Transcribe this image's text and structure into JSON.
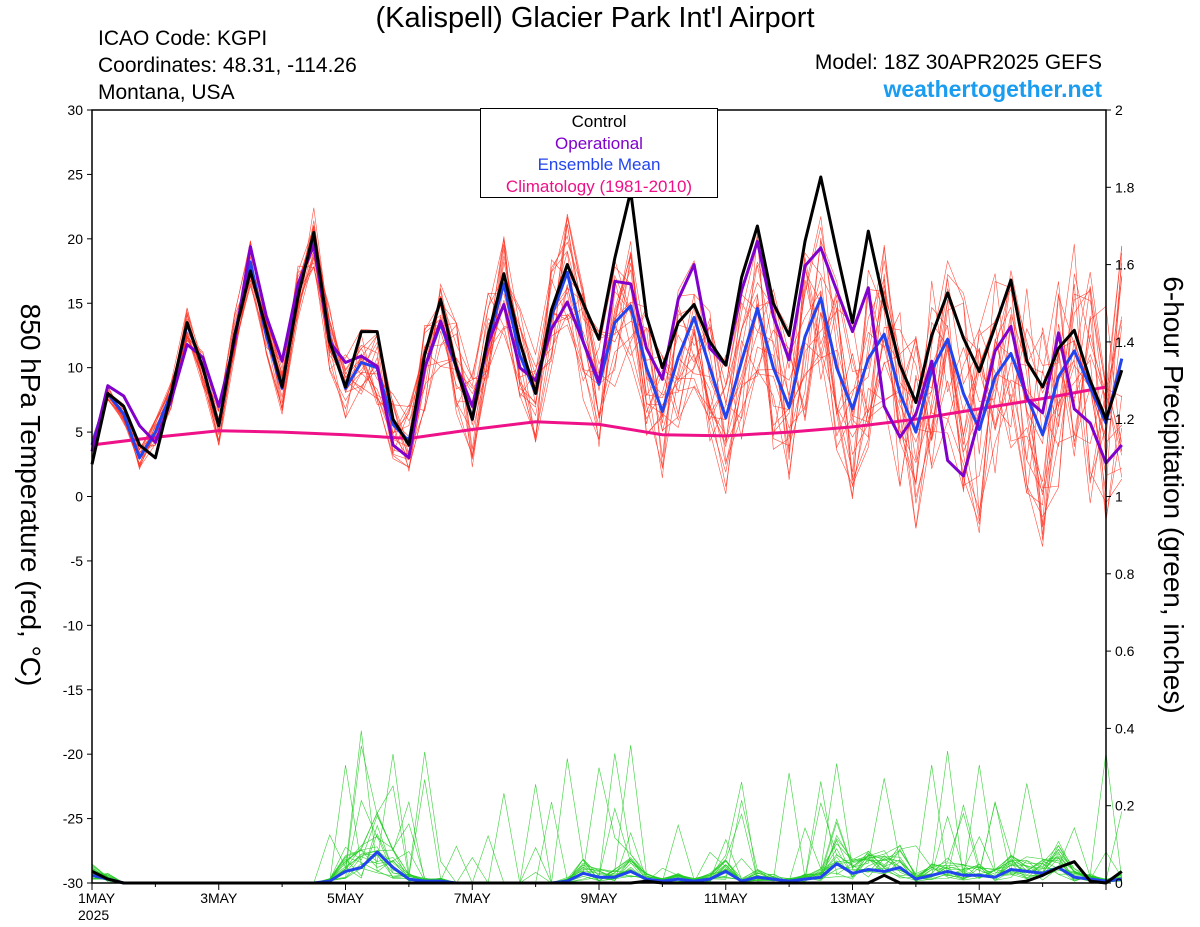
{
  "header": {
    "title": "(Kalispell) Glacier Park Int'l Airport",
    "icao": "ICAO Code: KGPI",
    "coordinates": "Coordinates: 48.31, -114.26",
    "location": "Montana, USA",
    "model": "Model: 18Z 30APR2025 GEFS",
    "website": "weathertogether.net"
  },
  "colors": {
    "control": "#000000",
    "operational": "#8000cc",
    "ensemble_mean": "#2244ee",
    "climatology": "#ee1188",
    "members_temp": "#ff3322",
    "members_precip": "#22cc22",
    "website": "#1a9cf0"
  },
  "legend": {
    "items": [
      {
        "label": "Control",
        "color": "#000000"
      },
      {
        "label": "Operational",
        "color": "#8000cc"
      },
      {
        "label": "Ensemble Mean",
        "color": "#2244ee"
      },
      {
        "label": "Climatology (1981-2010)",
        "color": "#ee1188"
      }
    ]
  },
  "chart_data": {
    "type": "line",
    "ylabel_left": "850 hPa Temperature (red, °C)",
    "ylabel_right": "6-hour Precipitation (green, inches)",
    "ylim_left": [
      -30,
      30
    ],
    "ylim_right": [
      0,
      2
    ],
    "yticks_left": [
      30,
      25,
      20,
      15,
      10,
      5,
      0,
      -5,
      -10,
      -15,
      -20,
      -25,
      -30
    ],
    "yticks_right": [
      "2",
      "1.8",
      "1.6",
      "1.4",
      "1.2",
      "1",
      "0.8",
      "0.6",
      "0.4",
      "0.2",
      "0"
    ],
    "xtick_labels": [
      "1MAY",
      "3MAY",
      "5MAY",
      "7MAY",
      "9MAY",
      "11MAY",
      "13MAY",
      "15MAY"
    ],
    "xtick_sublabel": "2025",
    "x_days_range": [
      0,
      16
    ],
    "grid": false,
    "temp_series": {
      "control": [
        2.5,
        8,
        7,
        4,
        3,
        8,
        13.5,
        10,
        5.5,
        12.5,
        17.5,
        13,
        8.5,
        15.5,
        20.5,
        12,
        8.5,
        12.8,
        12.8,
        6,
        4,
        11,
        15.3,
        10,
        6,
        12.5,
        17.3,
        12,
        8,
        14.5,
        18,
        15,
        12.2,
        18.5,
        23.7,
        14,
        10,
        13.5,
        14.9,
        12,
        10.2,
        17,
        21,
        15,
        12.5,
        19.8,
        24.8,
        19,
        13.5,
        20.6,
        15,
        10.2,
        7.3,
        12.5,
        15.8,
        12.3,
        9.7,
        13.2,
        16.8,
        10.5,
        8.5,
        11.5,
        12.9,
        9,
        6,
        9.8
      ],
      "operational": [
        3.5,
        8.6,
        7.8,
        5.5,
        4.2,
        7.5,
        11.8,
        10.8,
        7,
        12,
        19.4,
        14,
        10.5,
        16.5,
        19.5,
        12,
        10.4,
        10.9,
        10.1,
        4,
        3,
        10,
        13.6,
        10.1,
        7,
        11.9,
        14.9,
        10,
        9,
        13,
        15.1,
        12,
        8.9,
        16.7,
        16.5,
        11.5,
        9.1,
        15.3,
        18,
        11.5,
        10.2,
        16,
        19.8,
        14,
        10.6,
        17.9,
        19.3,
        16,
        12.8,
        16.2,
        7,
        4.6,
        6.4,
        10.5,
        2.8,
        1.6,
        6.1,
        11.3,
        13.2,
        7.6,
        6.5,
        12.7,
        6.8,
        5.7,
        2.6,
        4
      ],
      "ensemble_mean": [
        4,
        8,
        6.4,
        3,
        5,
        8,
        13.4,
        10,
        5.5,
        12.5,
        18.2,
        12.5,
        8.4,
        16,
        20.1,
        12.3,
        8.4,
        10.4,
        10,
        5.6,
        4.3,
        10,
        13.4,
        10,
        6,
        12.2,
        16.5,
        11,
        8,
        14,
        17.4,
        12,
        8.7,
        13.5,
        14.8,
        10,
        6.6,
        10.8,
        13.9,
        10,
        6.1,
        10.5,
        14.6,
        10,
        6.9,
        12.4,
        15.4,
        10,
        6.8,
        10.7,
        12.6,
        8,
        5,
        9.8,
        12.2,
        8,
        5.2,
        9.3,
        11.1,
        7.8,
        4.8,
        9.3,
        11.3,
        8.5,
        5.7,
        10.7
      ],
      "climatology_x_days": [
        0,
        1,
        2,
        3,
        4,
        5,
        6,
        7,
        8,
        9,
        10,
        11,
        12,
        13,
        14,
        15,
        16
      ],
      "climatology": [
        4,
        4.6,
        5.1,
        5.0,
        4.8,
        4.5,
        5.2,
        5.8,
        5.6,
        4.8,
        4.7,
        5.0,
        5.4,
        6.0,
        6.8,
        7.6,
        8.5
      ]
    },
    "precip_series": {
      "control": [
        0.03,
        0.01,
        0,
        0,
        0,
        0,
        0,
        0,
        0,
        0,
        0,
        0,
        0,
        0,
        0,
        0,
        0,
        0,
        0,
        0,
        0,
        0,
        0,
        0,
        0,
        0,
        0,
        0,
        0,
        0,
        0,
        0,
        0,
        0,
        0,
        0.005,
        0,
        0,
        0,
        0,
        0,
        0,
        0,
        0,
        0,
        0,
        0,
        0,
        0,
        0,
        0.02,
        0,
        0,
        0,
        0,
        0,
        0,
        0,
        0,
        0.005,
        0.02,
        0.04,
        0.055,
        0.005,
        0,
        0.03
      ],
      "ensemble_mean": [
        0.02,
        0.01,
        0,
        0,
        0,
        0,
        0,
        0,
        0,
        0,
        0,
        0,
        0,
        0,
        0,
        0.005,
        0.03,
        0.04,
        0.08,
        0.04,
        0.01,
        0.005,
        0.005,
        0,
        0,
        0,
        0,
        0,
        0,
        0,
        0.005,
        0.025,
        0.015,
        0.015,
        0.03,
        0.01,
        0.005,
        0.01,
        0.005,
        0.01,
        0.03,
        0.005,
        0.015,
        0.01,
        0.005,
        0.01,
        0.015,
        0.05,
        0.025,
        0.035,
        0.03,
        0.04,
        0.01,
        0.02,
        0.03,
        0.02,
        0.02,
        0.015,
        0.035,
        0.03,
        0.025,
        0.04,
        0.015,
        0.01,
        0.005,
        0.01
      ]
    }
  }
}
